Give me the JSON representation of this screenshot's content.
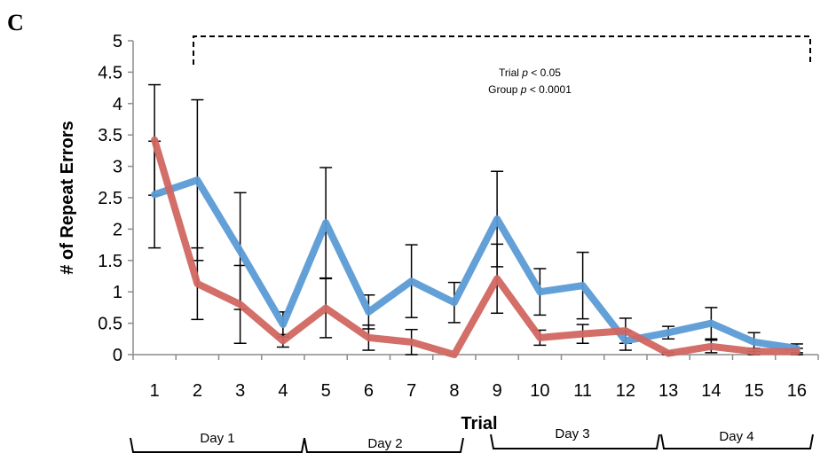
{
  "panel_label": "C",
  "annotation": {
    "line1_prefix": "Trial ",
    "line1_p": "p",
    "line1_suffix": " < 0.05",
    "line2_prefix": "Group ",
    "line2_p": "p",
    "line2_suffix": " < 0.0001"
  },
  "days": [
    "Day 1",
    "Day 2",
    "Day 3",
    "Day 4"
  ],
  "chart_data": {
    "type": "line",
    "title": "",
    "xlabel": "Trial",
    "ylabel": "# of Repeat Errors",
    "ylim": [
      0,
      5
    ],
    "yticks": [
      "0",
      "0.5",
      "1",
      "1.5",
      "2",
      "2.5",
      "3",
      "3.5",
      "4",
      "4.5",
      "5"
    ],
    "x": [
      1,
      2,
      3,
      4,
      5,
      6,
      7,
      8,
      9,
      10,
      11,
      12,
      13,
      14,
      15,
      16
    ],
    "grid": false,
    "series": [
      {
        "color": "#5b9bd5",
        "values": [
          2.55,
          2.78,
          1.65,
          0.48,
          2.1,
          0.68,
          1.17,
          0.83,
          2.16,
          1.0,
          1.1,
          0.22,
          0.35,
          0.5,
          0.2,
          0.1
        ],
        "error": [
          0.85,
          1.28,
          0.93,
          0.2,
          0.88,
          0.27,
          0.58,
          0.32,
          0.76,
          0.37,
          0.53,
          0.15,
          0.1,
          0.25,
          0.15,
          0.07
        ]
      },
      {
        "color": "#d16660",
        "values": [
          3.42,
          1.13,
          0.8,
          0.22,
          0.74,
          0.27,
          0.2,
          0.0,
          1.21,
          0.27,
          0.33,
          0.38,
          0.02,
          0.13,
          0.05,
          0.05
        ],
        "error": [
          0.88,
          0.57,
          0.62,
          0.1,
          0.47,
          0.2,
          0.2,
          0.0,
          0.55,
          0.12,
          0.15,
          0.2,
          0.02,
          0.1,
          0.05,
          0.05
        ]
      }
    ]
  }
}
